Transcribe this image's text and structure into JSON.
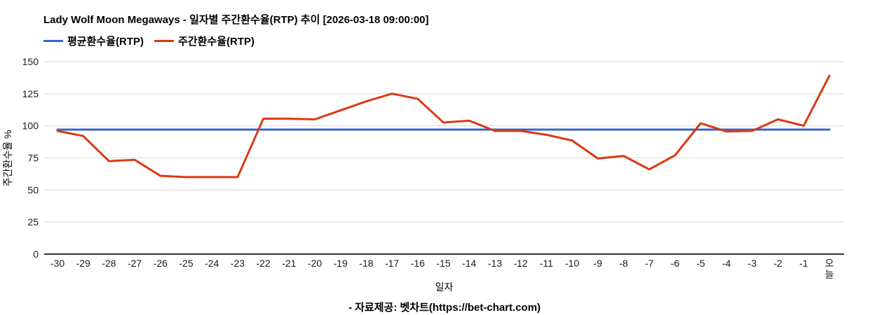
{
  "footer": {
    "credit": "- 자료제공: 벳차트(https://bet-chart.com)"
  },
  "chart_data": {
    "type": "line",
    "title": "Lady Wolf Moon Megaways - 일자별 주간환수율(RTP) 추이 [2026-03-18 09:00:00]",
    "xlabel": "일자",
    "ylabel": "주간환수율 %",
    "ylim": [
      0,
      150
    ],
    "yticks": [
      0,
      25,
      50,
      75,
      100,
      125,
      150
    ],
    "grid": true,
    "legend_position": "top-left",
    "last_tick_stacked": true,
    "categories": [
      "-30",
      "-29",
      "-28",
      "-27",
      "-26",
      "-25",
      "-24",
      "-23",
      "-22",
      "-21",
      "-20",
      "-19",
      "-18",
      "-17",
      "-16",
      "-15",
      "-14",
      "-13",
      "-12",
      "-11",
      "-10",
      "-9",
      "-8",
      "-7",
      "-6",
      "-5",
      "-4",
      "-3",
      "-2",
      "-1",
      "오늘"
    ],
    "series": [
      {
        "name": "평균환수율(RTP)",
        "color": "#3366cc",
        "constant_value": 97
      },
      {
        "name": "주간환수율(RTP)",
        "color": "#dc3912",
        "values": [
          96,
          92,
          72.5,
          73.5,
          61,
          60,
          60,
          60,
          105.5,
          105.5,
          105,
          112,
          119,
          125,
          121,
          102.5,
          104,
          96,
          96,
          93,
          88.5,
          74.5,
          76.5,
          66,
          77,
          102,
          95.5,
          96,
          105,
          100,
          139
        ]
      }
    ],
    "colors": {
      "gridline": "#d9d9d9",
      "baseline": "#333333",
      "tick_text": "#1a1a1a"
    }
  }
}
